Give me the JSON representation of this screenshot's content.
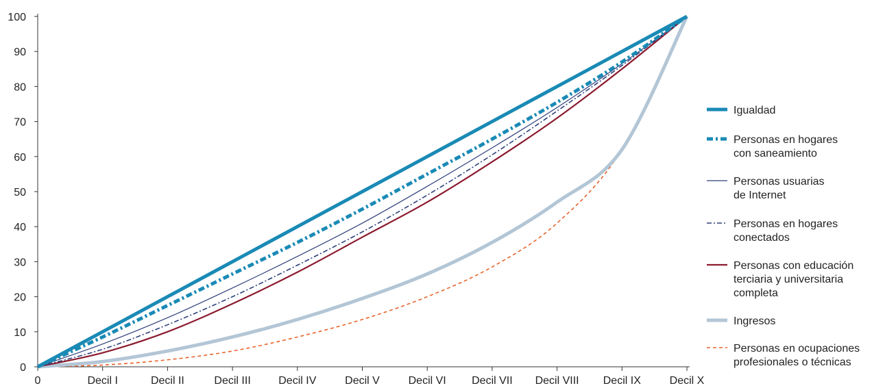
{
  "chart_data": {
    "type": "line",
    "x_categories": [
      "0",
      "Decil I",
      "Decil II",
      "Decil III",
      "Decil IV",
      "Decil V",
      "Decil VI",
      "Decil VII",
      "Decil VIII",
      "Decil IX",
      "Decil X"
    ],
    "ylim": [
      0,
      100
    ],
    "yticks": [
      0,
      10,
      20,
      30,
      40,
      50,
      60,
      70,
      80,
      90,
      100
    ],
    "grid": false,
    "legend_position": "right",
    "series": [
      {
        "name": "Igualdad",
        "legend_lines": [
          "Igualdad"
        ],
        "color": "#1a8ab5",
        "style": "solid-thick",
        "values": [
          0,
          10,
          20,
          30,
          40,
          50,
          60,
          70,
          80,
          90,
          100
        ]
      },
      {
        "name": "Personas en hogares con saneamiento",
        "legend_lines": [
          "Personas en hogares",
          "con saneamiento"
        ],
        "color": "#1a8ab5",
        "style": "dashdot-thick",
        "values": [
          0,
          8.5,
          17.5,
          26.5,
          35.5,
          45,
          55,
          65,
          75.5,
          87,
          100
        ]
      },
      {
        "name": "Personas usuarias de Internet",
        "legend_lines": [
          "Personas usuarias",
          "de Internet"
        ],
        "color": "#2d3f7a",
        "style": "solid-thin",
        "values": [
          0,
          6.5,
          14,
          22.5,
          31.5,
          41,
          51.5,
          62.5,
          74,
          86.5,
          100
        ]
      },
      {
        "name": "Personas en hogares conectados",
        "legend_lines": [
          "Personas en hogares",
          "conectados"
        ],
        "color": "#2d3f7a",
        "style": "dashdot-thin",
        "values": [
          0,
          5,
          12,
          20,
          29,
          38.5,
          49,
          60.5,
          73,
          86,
          100
        ]
      },
      {
        "name": "Personas con educación terciaria y universitaria completa",
        "legend_lines": [
          "Personas con educación",
          "terciaria y universitaria",
          "completa"
        ],
        "color": "#8b1a2e",
        "style": "solid-medium",
        "values": [
          0,
          4,
          10,
          18,
          27,
          37,
          47,
          58.5,
          71,
          85,
          100
        ]
      },
      {
        "name": "Ingresos",
        "legend_lines": [
          "Ingresos"
        ],
        "color": "#b3c6d6",
        "style": "solid-thick",
        "values": [
          0,
          1.5,
          4.5,
          8.5,
          13.5,
          19.5,
          26.5,
          35.5,
          47,
          62,
          100
        ]
      },
      {
        "name": "Personas en ocupaciones profesionales o técnicas",
        "legend_lines": [
          "Personas en ocupaciones",
          "profesionales o técnicas"
        ],
        "color": "#e8622a",
        "style": "dashed-thin",
        "values": [
          0,
          0.5,
          2,
          4.5,
          8.5,
          13.5,
          20,
          28.5,
          41,
          62,
          100
        ]
      }
    ]
  }
}
